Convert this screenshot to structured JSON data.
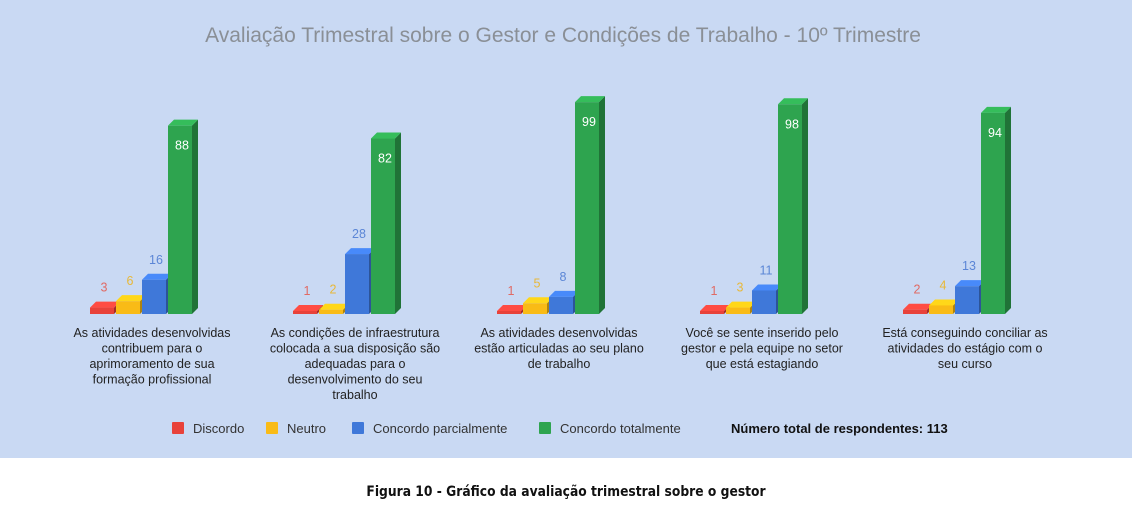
{
  "chart_data": {
    "type": "bar",
    "title": "Avaliação Trimestral sobre o Gestor e Condições de Trabalho - 10º Trimestre",
    "categories": [
      [
        "As atividades desenvolvidas",
        "contribuem para o",
        "aprimoramento de sua",
        "formação profissional"
      ],
      [
        "As condições de infraestrutura",
        "colocada a sua disposição são",
        "adequadas para o",
        "desenvolvimento do seu",
        "trabalho"
      ],
      [
        "As atividades desenvolvidas",
        "estão articuladas ao seu plano",
        "de trabalho"
      ],
      [
        "Você se sente inserido pelo",
        "gestor e pela equipe no setor",
        "que está estagiando"
      ],
      [
        "Está conseguindo conciliar as",
        "atividades do estágio com o",
        "seu curso"
      ]
    ],
    "series": [
      {
        "name": "Discordo",
        "color": "#e8423a",
        "label_color": "#e06a64",
        "values": [
          3,
          1,
          1,
          1,
          2
        ]
      },
      {
        "name": "Neutro",
        "color": "#f9bb16",
        "label_color": "#e8b838",
        "values": [
          6,
          2,
          5,
          3,
          4
        ]
      },
      {
        "name": "Concordo parcialmente",
        "color": "#3f78d9",
        "label_color": "#5b86d6",
        "values": [
          16,
          28,
          8,
          11,
          13
        ]
      },
      {
        "name": "Concordo totalmente",
        "color": "#2ea44f",
        "label_color": "#ffffff",
        "values": [
          88,
          82,
          99,
          98,
          94
        ]
      }
    ],
    "legend_position": "bottom",
    "grid": false,
    "ylim": [
      0,
      100
    ],
    "note": "Número total de respondentes: 113"
  },
  "caption": "Figura 10 - Gráfico da avaliação trimestral sobre o gestor"
}
